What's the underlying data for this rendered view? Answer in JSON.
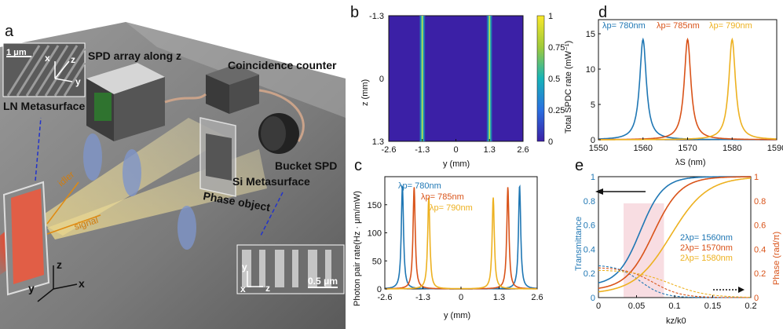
{
  "panel_letters": {
    "a": "a",
    "b": "b",
    "c": "c",
    "d": "d",
    "e": "e"
  },
  "setup": {
    "scale_top": "1 μm",
    "axis_x": "x",
    "axis_y": "y",
    "axis_z": "z",
    "lbl_ln": "LN Metasurface",
    "lbl_spd": "SPD array along z",
    "lbl_coin": "Coincidence counter",
    "lbl_bucket": "Bucket SPD",
    "lbl_si": "Si Metasurface",
    "lbl_phase": "Phase object",
    "lbl_idler": "idler",
    "lbl_signal": "signal",
    "scale_bottom": "0.5 μm"
  },
  "chart_data": [
    {
      "panel": "b",
      "type": "heatmap",
      "x_ticks": [
        "-2.6",
        "-1.3",
        "0",
        "1.3",
        "2.6"
      ],
      "y_ticks": [
        "-1.3",
        "0",
        "1.3"
      ],
      "xlabel": "y (mm)",
      "ylabel": "z (mm)",
      "x_range": [
        -2.6,
        2.6
      ],
      "y_range": [
        -1.3,
        1.3
      ],
      "lines_at": [
        -1.3,
        1.3
      ],
      "colorbar_ticks": [
        "0",
        "0.25",
        "0.5",
        "0.75",
        "1"
      ],
      "colors": {
        "low": "#3b20a6",
        "high": "#f5e52a"
      }
    },
    {
      "panel": "c",
      "type": "line",
      "xlabel": "y (mm)",
      "ylabel": "Photon pair rate(Hz · μm/mW)",
      "x_range": [
        -2.6,
        2.6
      ],
      "y_range": [
        0,
        200
      ],
      "x_ticks": [
        "-2.6",
        "-1.3",
        "0",
        "1.3",
        "2.6"
      ],
      "y_ticks": [
        "0",
        "50",
        "100",
        "150"
      ],
      "series": [
        {
          "name": "λp= 780nm",
          "color": "#1f77b4",
          "peaks": [
            -2.0,
            2.0
          ],
          "height": 185
        },
        {
          "name": "λp= 785nm",
          "color": "#d95319",
          "peaks": [
            -1.6,
            1.6
          ],
          "height": 182
        },
        {
          "name": "λp= 790nm",
          "color": "#edb120",
          "peaks": [
            -1.1,
            1.1
          ],
          "height": 163
        }
      ]
    },
    {
      "panel": "d",
      "type": "line",
      "xlabel": "λS (nm)",
      "ylabel": "Total SPDC rate  (mW⁻¹)",
      "x_range": [
        1550,
        1590
      ],
      "y_range": [
        0,
        17
      ],
      "x_ticks": [
        "1550",
        "1560",
        "1570",
        "1580",
        "1590"
      ],
      "y_ticks": [
        "0",
        "5",
        "10",
        "15"
      ],
      "series": [
        {
          "name": "λp= 780nm",
          "color": "#1f77b4",
          "center": 1560,
          "peak": 14.2
        },
        {
          "name": "λp= 785nm",
          "color": "#d95319",
          "center": 1570,
          "peak": 14.2
        },
        {
          "name": "λp= 790nm",
          "color": "#edb120",
          "center": 1580,
          "peak": 14.2
        }
      ]
    },
    {
      "panel": "e",
      "type": "line",
      "xlabel": "kz/k0",
      "ylabel": "Transmittance",
      "ylabel_right": "Phase (rad/π)",
      "x_range": [
        0,
        0.2
      ],
      "y_range": [
        0,
        1
      ],
      "x_ticks": [
        "0",
        "0.05",
        "0.1",
        "0.15",
        "0.2"
      ],
      "y_ticks": [
        "0",
        "0.2",
        "0.4",
        "0.6",
        "0.8",
        "1"
      ],
      "highlight_x": [
        0.033,
        0.086
      ],
      "series": [
        {
          "name": "2λp= 1560nm",
          "color": "#1f77b4"
        },
        {
          "name": "2λp= 1570nm",
          "color": "#d95319"
        },
        {
          "name": "2λp= 1580nm",
          "color": "#edb120"
        }
      ],
      "left_axis_color": "#1f77b4",
      "right_axis_color": "#d95319"
    }
  ]
}
